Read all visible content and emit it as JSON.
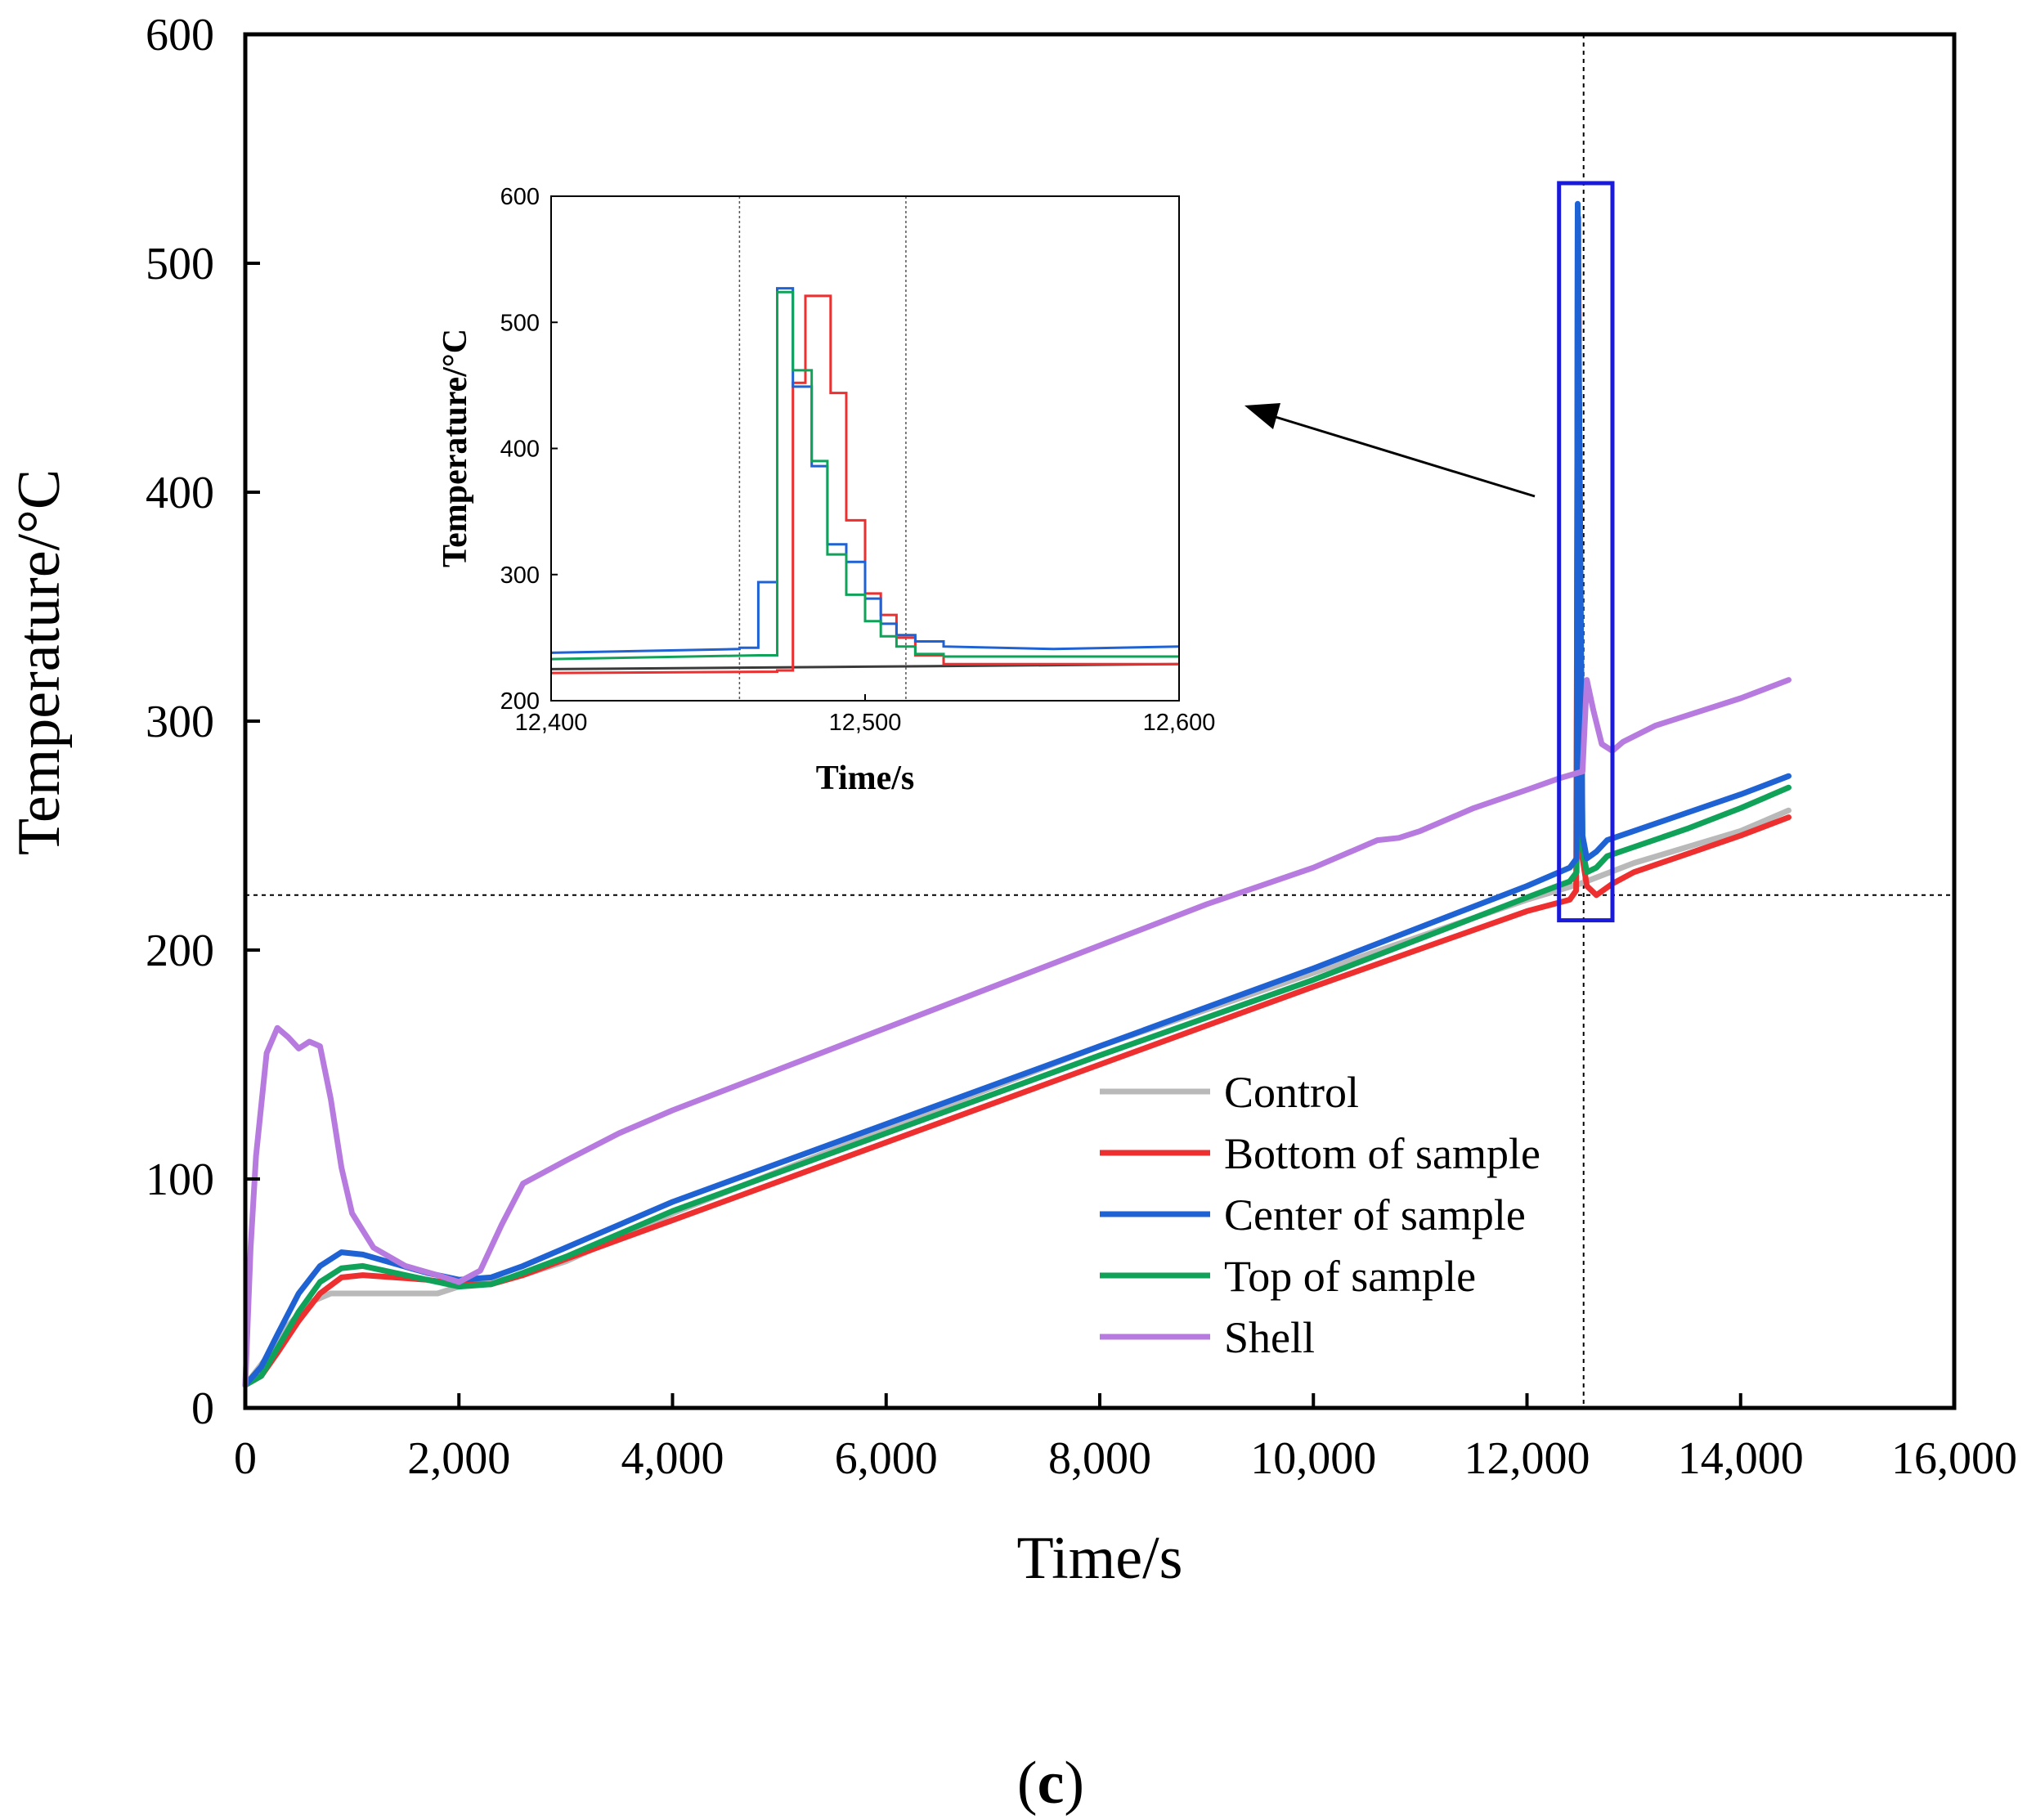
{
  "chart_data": [
    {
      "type": "line",
      "role": "main",
      "title": "",
      "xlabel": "Time/s",
      "ylabel": "Temperature/°C",
      "xlim": [
        0,
        16000
      ],
      "ylim": [
        0,
        600
      ],
      "xticks": [
        0,
        2000,
        4000,
        6000,
        8000,
        10000,
        12000,
        14000,
        16000
      ],
      "xtick_labels": [
        "0",
        "2,000",
        "4,000",
        "6,000",
        "8,000",
        "10,000",
        "12,000",
        "14,000",
        "16,000"
      ],
      "yticks": [
        0,
        100,
        200,
        300,
        400,
        500,
        600
      ],
      "ytick_labels": [
        "0",
        "100",
        "200",
        "300",
        "400",
        "500",
        "600"
      ],
      "grid": false,
      "legend_position": "center-right",
      "reference_lines": {
        "vertical_x": 12530,
        "horizontal_y": 224
      },
      "highlight_box": {
        "x": [
          12300,
          12800
        ],
        "y": [
          213,
          535
        ],
        "color": "#1a1adb"
      },
      "series": [
        {
          "name": "Control",
          "color": "#b9b9b9",
          "x": [
            0,
            200,
            400,
            600,
            800,
            1000,
            1200,
            1500,
            1800,
            2000,
            2300,
            2600,
            3000,
            4000,
            6000,
            8000,
            10000,
            12000,
            12500,
            13000,
            14000,
            14450
          ],
          "y": [
            10,
            22,
            36,
            46,
            50,
            50,
            50,
            50,
            50,
            53,
            55,
            58,
            64,
            85,
            122,
            158,
            190,
            222,
            229,
            238,
            252,
            261
          ]
        },
        {
          "name": "Bottom of sample",
          "color": "#ee2f2f",
          "x": [
            0,
            150,
            300,
            500,
            700,
            900,
            1100,
            1400,
            1700,
            2000,
            2300,
            2600,
            3000,
            4000,
            6000,
            8000,
            10000,
            12000,
            12400,
            12460,
            12480,
            12500,
            12520,
            12560,
            12650,
            12800,
            13000,
            13500,
            14000,
            14450
          ],
          "y": [
            10,
            14,
            24,
            38,
            50,
            57,
            58,
            57,
            56,
            54,
            54,
            58,
            65,
            82,
            116,
            150,
            184,
            217,
            222,
            226,
            520,
            300,
            240,
            228,
            224,
            229,
            234,
            242,
            250,
            258
          ]
        },
        {
          "name": "Center of sample",
          "color": "#1f62d4",
          "x": [
            0,
            150,
            300,
            500,
            700,
            900,
            1100,
            1400,
            1700,
            2000,
            2300,
            2600,
            3000,
            4000,
            6000,
            8000,
            10000,
            12000,
            12400,
            12465,
            12475,
            12495,
            12520,
            12560,
            12650,
            12750,
            13000,
            13500,
            14000,
            14450
          ],
          "y": [
            10,
            18,
            32,
            50,
            62,
            68,
            67,
            63,
            59,
            56,
            57,
            62,
            70,
            90,
            124,
            158,
            192,
            228,
            236,
            240,
            526,
            400,
            250,
            240,
            243,
            248,
            252,
            260,
            268,
            276
          ]
        },
        {
          "name": "Top of sample",
          "color": "#11a25a",
          "x": [
            0,
            150,
            300,
            500,
            700,
            900,
            1100,
            1400,
            1700,
            2000,
            2300,
            2600,
            3000,
            4000,
            6000,
            8000,
            10000,
            12000,
            12400,
            12465,
            12475,
            12495,
            12520,
            12560,
            12650,
            12750,
            13000,
            13500,
            14000,
            14450
          ],
          "y": [
            10,
            14,
            26,
            42,
            55,
            61,
            62,
            59,
            56,
            53,
            54,
            59,
            66,
            86,
            120,
            154,
            187,
            223,
            230,
            234,
            524,
            390,
            244,
            234,
            236,
            241,
            245,
            253,
            262,
            271
          ]
        },
        {
          "name": "Shell",
          "color": "#b77be0",
          "x": [
            0,
            50,
            100,
            200,
            300,
            400,
            500,
            600,
            700,
            800,
            900,
            1000,
            1200,
            1500,
            1800,
            2000,
            2200,
            2400,
            2600,
            3000,
            3500,
            4000,
            5000,
            6000,
            7000,
            8000,
            9000,
            10000,
            10600,
            10800,
            11000,
            11500,
            12000,
            12300,
            12520,
            12560,
            12620,
            12700,
            12800,
            12900,
            13200,
            13600,
            14000,
            14450
          ],
          "y": [
            10,
            70,
            110,
            155,
            166,
            162,
            157,
            160,
            158,
            135,
            105,
            85,
            70,
            62,
            58,
            55,
            60,
            80,
            98,
            108,
            120,
            130,
            148,
            166,
            184,
            202,
            220,
            236,
            248,
            249,
            252,
            262,
            270,
            275,
            278,
            318,
            305,
            290,
            287,
            291,
            298,
            304,
            310,
            318
          ]
        }
      ]
    },
    {
      "type": "line",
      "role": "inset",
      "title": "",
      "xlabel": "Time/s",
      "ylabel": "Temperature/°C",
      "xlim": [
        12400,
        12600
      ],
      "ylim": [
        200,
        600
      ],
      "xticks": [
        12400,
        12500,
        12600
      ],
      "xtick_labels": [
        "12,400",
        "12,500",
        "12,600"
      ],
      "yticks": [
        200,
        300,
        400,
        500,
        600
      ],
      "ytick_labels": [
        "200",
        "300",
        "400",
        "500",
        "600"
      ],
      "grid": false,
      "reference_lines": {
        "vertical_x": [
          12460,
          12513
        ]
      },
      "series": [
        {
          "name": "Control",
          "color": "#3a3a3a",
          "x": [
            12400,
            12500,
            12600
          ],
          "y": [
            225,
            227,
            229
          ]
        },
        {
          "name": "Bottom of sample",
          "color": "#ee2f2f",
          "x": [
            12400,
            12472,
            12472,
            12477,
            12477,
            12481,
            12481,
            12489,
            12489,
            12494,
            12494,
            12500,
            12500,
            12505,
            12505,
            12510,
            12510,
            12516,
            12516,
            12525,
            12525,
            12600
          ],
          "y": [
            222,
            223,
            224,
            224,
            452,
            452,
            521,
            521,
            444,
            444,
            343,
            343,
            285,
            285,
            268,
            268,
            250,
            250,
            236,
            236,
            229,
            229
          ]
        },
        {
          "name": "Center of sample",
          "color": "#1f62d4",
          "x": [
            12400,
            12460,
            12460,
            12466,
            12466,
            12472,
            12472,
            12477,
            12477,
            12483,
            12483,
            12488,
            12488,
            12494,
            12494,
            12500,
            12500,
            12505,
            12505,
            12510,
            12510,
            12516,
            12516,
            12525,
            12525,
            12560,
            12600
          ],
          "y": [
            238,
            241,
            242,
            242,
            294,
            294,
            527,
            527,
            449,
            449,
            386,
            386,
            324,
            324,
            310,
            310,
            281,
            281,
            261,
            261,
            252,
            252,
            247,
            247,
            243,
            241,
            243
          ]
        },
        {
          "name": "Top of sample",
          "color": "#11a25a",
          "x": [
            12400,
            12466,
            12466,
            12472,
            12472,
            12477,
            12477,
            12483,
            12483,
            12488,
            12488,
            12494,
            12494,
            12500,
            12500,
            12505,
            12505,
            12510,
            12510,
            12516,
            12516,
            12525,
            12525,
            12600
          ],
          "y": [
            233,
            236,
            236,
            236,
            524,
            524,
            462,
            462,
            390,
            390,
            316,
            316,
            284,
            284,
            263,
            263,
            251,
            251,
            243,
            243,
            237,
            237,
            235,
            235
          ]
        }
      ]
    }
  ],
  "panel_label": {
    "open": "(",
    "letter": "c",
    "close": ")"
  }
}
